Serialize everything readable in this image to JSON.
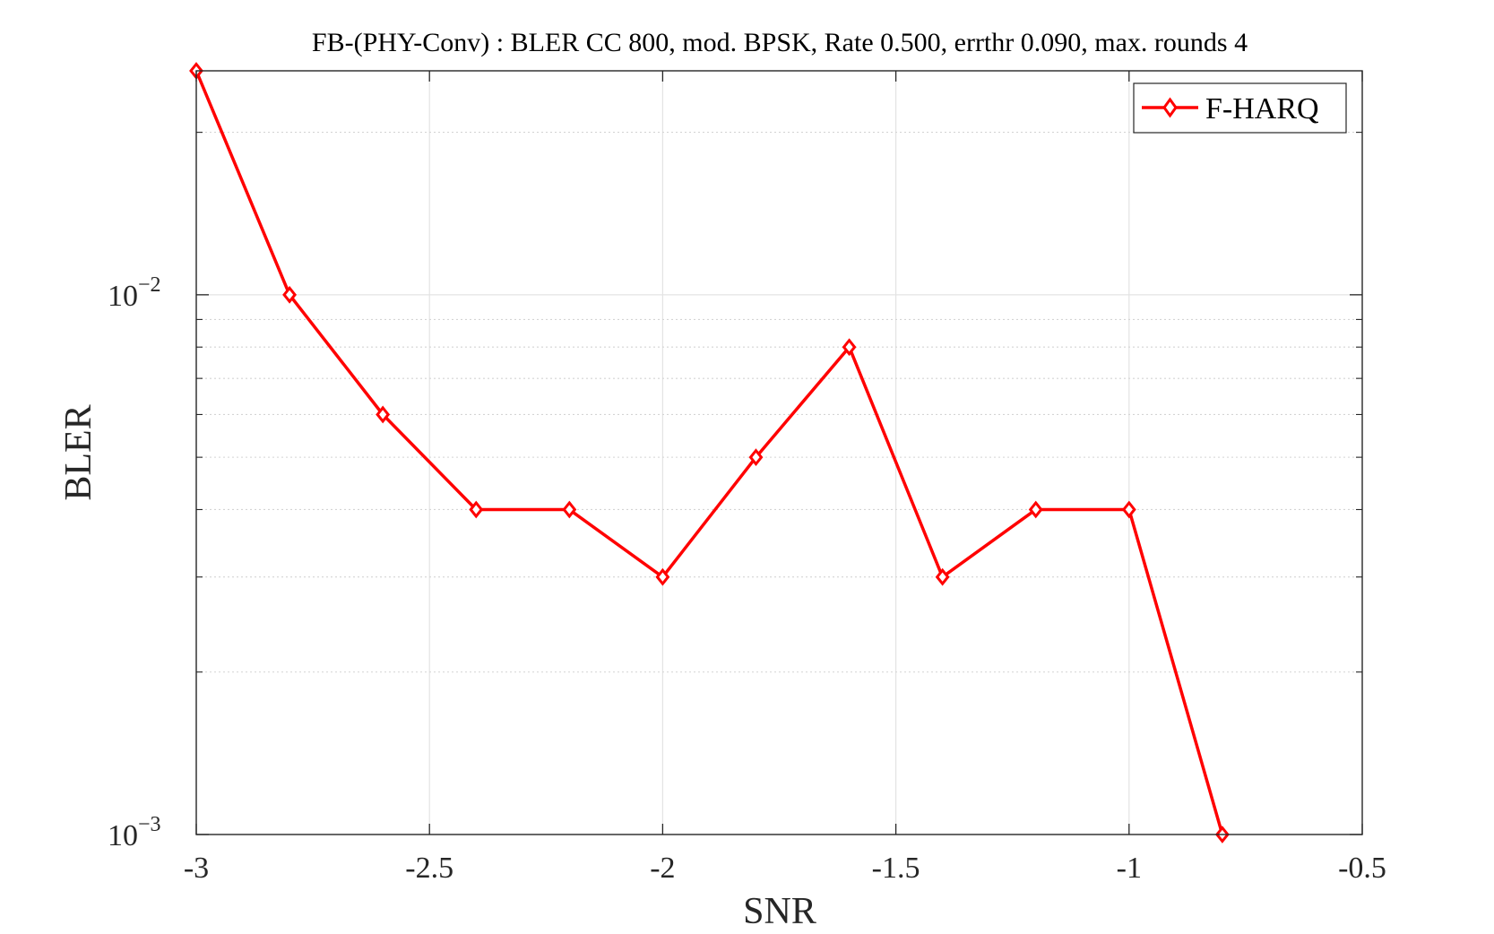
{
  "chart_data": {
    "type": "line",
    "title": "FB-(PHY-Conv) : BLER CC 800, mod. BPSK, Rate 0.500, errthr 0.090, max. rounds 4",
    "xlabel": "SNR",
    "ylabel": "BLER",
    "xlim": [
      -3,
      -0.5
    ],
    "ylim": [
      0.001,
      0.026
    ],
    "yscale": "log",
    "grid": true,
    "legend_placement": "top-right",
    "x_ticks": [
      -3,
      -2.5,
      -2,
      -1.5,
      -1,
      -0.5
    ],
    "x_tick_labels": [
      "-3",
      "-2.5",
      "-2",
      "-1.5",
      "-1",
      "-0.5"
    ],
    "y_ticks": [
      {
        "value": 0.001,
        "base": "10",
        "exp": "−3"
      },
      {
        "value": 0.01,
        "base": "10",
        "exp": "−2"
      }
    ],
    "series": [
      {
        "name": "F-HARQ",
        "color": "#ff0000",
        "marker": "diamond",
        "x": [
          -3,
          -2.8,
          -2.6,
          -2.4,
          -2.2,
          -2,
          -1.8,
          -1.6,
          -1.4,
          -1.2,
          -1,
          -0.8
        ],
        "values": [
          0.026,
          0.01,
          0.006,
          0.004,
          0.004,
          0.003,
          0.005,
          0.008,
          0.003,
          0.004,
          0.004,
          0.001
        ]
      }
    ]
  }
}
